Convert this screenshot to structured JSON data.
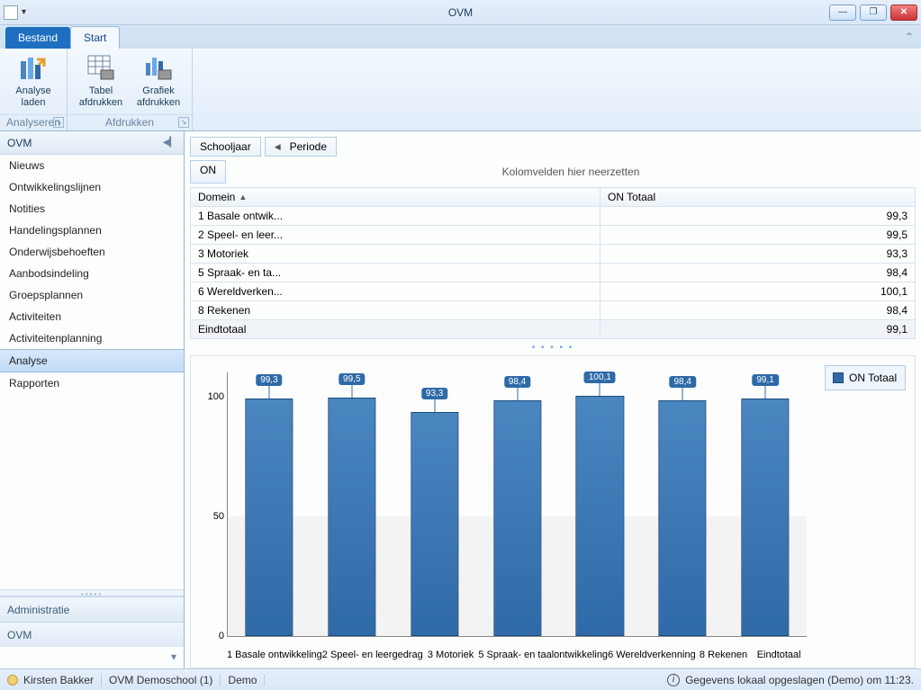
{
  "window": {
    "title": "OVM"
  },
  "ribbon": {
    "file_tab": "Bestand",
    "active_tab": "Start",
    "groups": {
      "analyseren": {
        "label": "Analyseren",
        "buttons": {
          "analyse_laden": "Analyse\nladen"
        }
      },
      "afdrukken": {
        "label": "Afdrukken",
        "buttons": {
          "tabel_afdrukken": "Tabel\nafdrukken",
          "grafiek_afdrukken": "Grafiek\nafdrukken"
        }
      }
    }
  },
  "sidebar": {
    "header": "OVM",
    "items": [
      "Nieuws",
      "Ontwikkelingslijnen",
      "Notities",
      "Handelingsplannen",
      "Onderwijsbehoeften",
      "Aanbodsindeling",
      "Groepsplannen",
      "Activiteiten",
      "Activiteitenplanning",
      "Analyse",
      "Rapporten"
    ],
    "selected_index": 9,
    "panels": [
      "Administratie",
      "OVM"
    ]
  },
  "pivot": {
    "schooljaar_label": "Schooljaar",
    "periode_label": "Periode",
    "on_label": "ON",
    "drop_hint": "Kolomvelden hier neerzetten",
    "domein_label": "Domein",
    "value_header": "ON Totaal",
    "rows": [
      {
        "label": "1 Basale ontwik...",
        "value": "99,3"
      },
      {
        "label": "2 Speel- en leer...",
        "value": "99,5"
      },
      {
        "label": "3 Motoriek",
        "value": "93,3"
      },
      {
        "label": "5 Spraak- en ta...",
        "value": "98,4"
      },
      {
        "label": "6 Wereldverken...",
        "value": "100,1"
      },
      {
        "label": "8 Rekenen",
        "value": "98,4"
      }
    ],
    "total": {
      "label": "Eindtotaal",
      "value": "99,1"
    }
  },
  "chart": {
    "type": "bar",
    "legend_label": "ON Totaal",
    "bar_color": "#2f6aa8",
    "bar_border": "#1d4a7a",
    "background_color": "#fdfdfd",
    "alt_band_color": "#f3f3f3",
    "ylim": [
      0,
      110
    ],
    "yticks": [
      0,
      50,
      100
    ],
    "label_offset": 14,
    "bars": [
      {
        "x": "1 Basale ontwikkeling",
        "value": 99.3,
        "label": "99,3"
      },
      {
        "x": "2 Speel- en leergedrag",
        "value": 99.5,
        "label": "99,5"
      },
      {
        "x": "3 Motoriek",
        "value": 93.3,
        "label": "93,3"
      },
      {
        "x": "5 Spraak- en taalontwikkeling",
        "value": 98.4,
        "label": "98,4"
      },
      {
        "x": "6 Wereldverkenning",
        "value": 100.1,
        "label": "100,1"
      },
      {
        "x": "8 Rekenen",
        "value": 98.4,
        "label": "98,4"
      },
      {
        "x": "Eindtotaal",
        "value": 99.1,
        "label": "99,1"
      }
    ]
  },
  "statusbar": {
    "user": "Kirsten Bakker",
    "school": "OVM Demoschool (1)",
    "mode": "Demo",
    "save_info": "Gegevens lokaal opgeslagen (Demo) om 11:23."
  }
}
